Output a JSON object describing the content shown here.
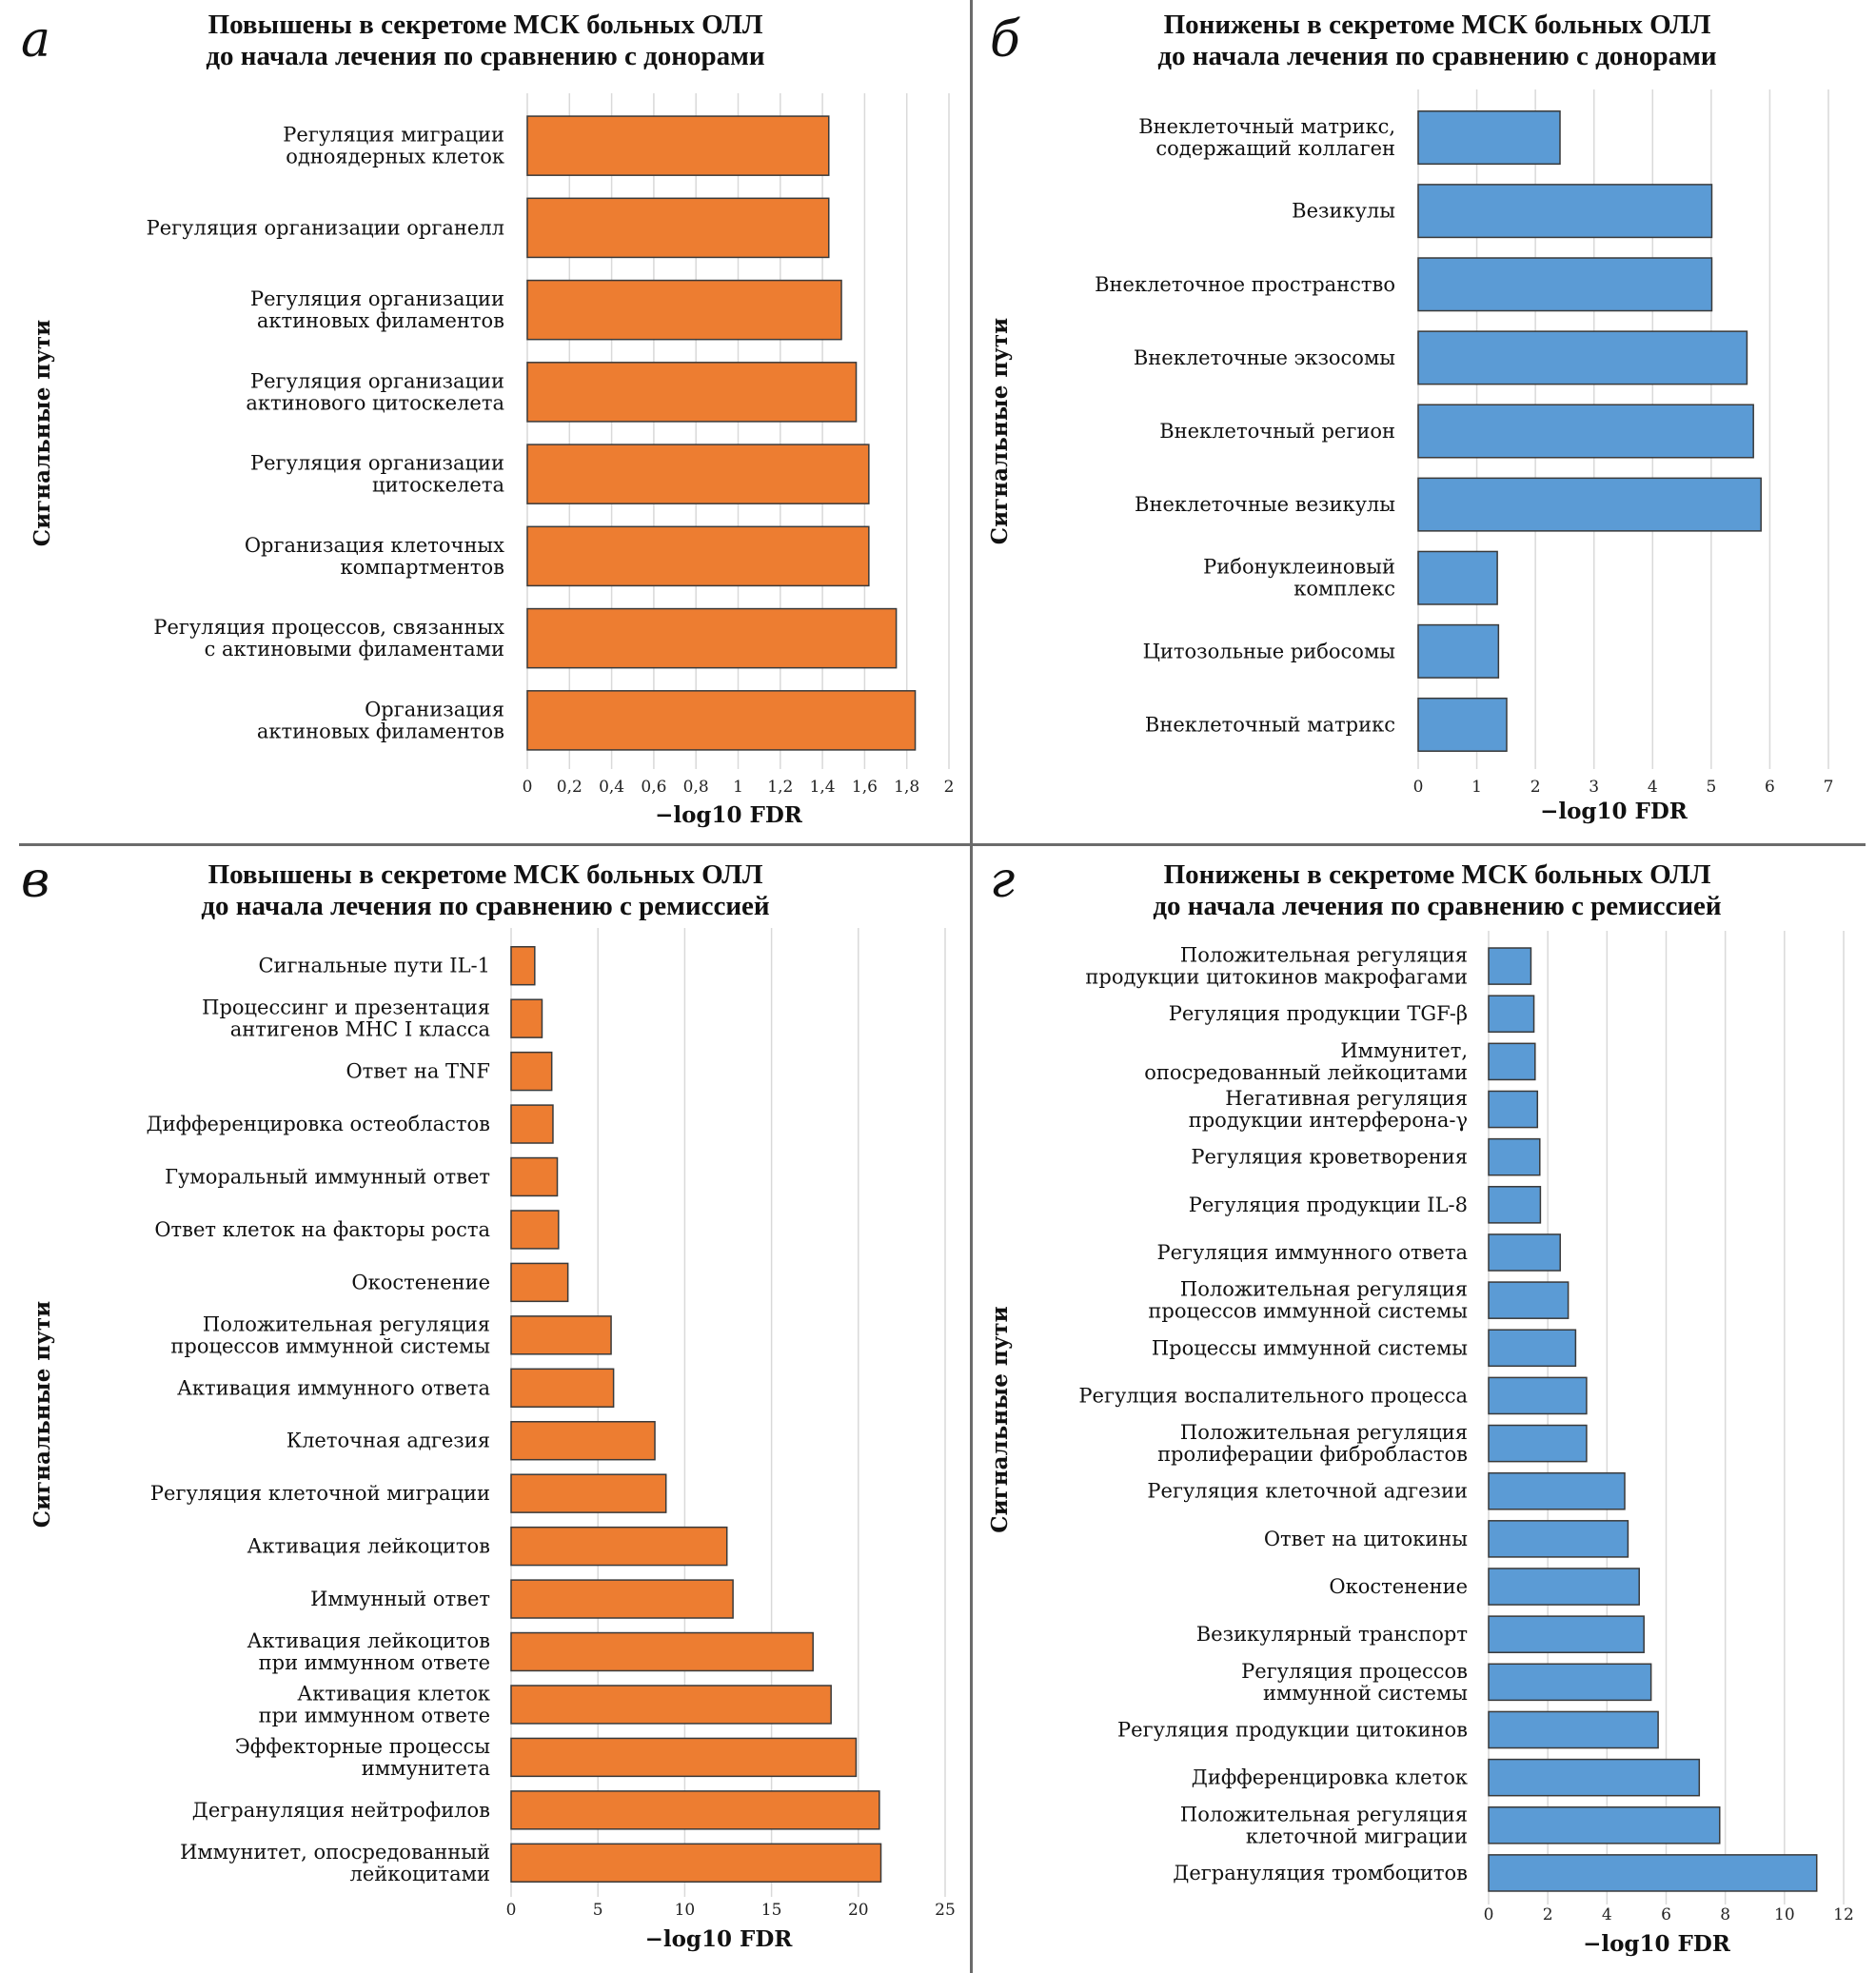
{
  "chart_data": [
    {
      "type": "bar",
      "orientation": "horizontal",
      "panel": "а",
      "title": [
        "Повышены в секретоме МСК больных ОЛЛ",
        "до начала лечения по сравнению с донорами"
      ],
      "xlabel": "−log10 FDR",
      "ylabel": "Сигнальные пути",
      "xlim": [
        0,
        2
      ],
      "xticks": [
        0,
        0.2,
        0.4,
        0.6,
        0.8,
        1,
        1.2,
        1.4,
        1.6,
        1.8,
        2
      ],
      "xtick_labels": [
        "0",
        "0,2",
        "0,4",
        "0,6",
        "0,8",
        "1",
        "1,2",
        "1,4",
        "1,6",
        "1,8",
        "2"
      ],
      "grid": true,
      "color": "#ED7D31",
      "categories": [
        [
          "Регуляция миграции",
          "одноядерных клеток"
        ],
        [
          "Регуляция организации органелл"
        ],
        [
          "Регуляция организации",
          "актиновых филаментов"
        ],
        [
          "Регуляция организации",
          "актинового цитоскелета"
        ],
        [
          "Регуляция организации",
          "цитоскелета"
        ],
        [
          "Организация клеточных",
          "компартментов"
        ],
        [
          "Регуляция процессов, связанных",
          "с актиновыми филаментами"
        ],
        [
          "Организация",
          "актиновых филаментов"
        ]
      ],
      "values": [
        1.43,
        1.43,
        1.49,
        1.56,
        1.62,
        1.62,
        1.75,
        1.84
      ]
    },
    {
      "type": "bar",
      "orientation": "horizontal",
      "panel": "б",
      "title": [
        "Понижены в секретоме МСК больных ОЛЛ",
        "до начала лечения по сравнению с донорами"
      ],
      "xlabel": "−log10 FDR",
      "ylabel": "Сигнальные пути",
      "xlim": [
        0,
        7
      ],
      "xticks": [
        0,
        1,
        2,
        3,
        4,
        5,
        6,
        7
      ],
      "xtick_labels": [
        "0",
        "1",
        "2",
        "3",
        "4",
        "5",
        "6",
        "7"
      ],
      "grid": true,
      "color": "#5B9BD5",
      "categories": [
        [
          "Внеклеточный матрикс,",
          "содержащий коллаген"
        ],
        [
          "Везикулы"
        ],
        [
          "Внеклеточное пространство"
        ],
        [
          "Внеклеточные экзосомы"
        ],
        [
          "Внеклеточный регион"
        ],
        [
          "Внеклеточные везикулы"
        ],
        [
          "Рибонуклеиновый",
          "комплекс"
        ],
        [
          "Цитозольные рибосомы"
        ],
        [
          "Внеклеточный матрикс"
        ]
      ],
      "values": [
        2.42,
        5.01,
        5.01,
        5.61,
        5.72,
        5.85,
        1.35,
        1.37,
        1.51
      ]
    },
    {
      "type": "bar",
      "orientation": "horizontal",
      "panel": "в",
      "title": [
        "Повышены в секретоме МСК больных ОЛЛ",
        "до начала лечения по сравнению с ремиссией"
      ],
      "xlabel": "−log10 FDR",
      "ylabel": "Сигнальные пути",
      "xlim": [
        0,
        25
      ],
      "xticks": [
        0,
        5,
        10,
        15,
        20,
        25
      ],
      "xtick_labels": [
        "0",
        "5",
        "10",
        "15",
        "20",
        "25"
      ],
      "grid": true,
      "color": "#ED7D31",
      "categories": [
        [
          "Сигнальные пути IL-1"
        ],
        [
          "Процессинг и презентация",
          "антигенов MHC I класса"
        ],
        [
          "Ответ на TNF"
        ],
        [
          "Дифференцировка остеобластов"
        ],
        [
          "Гуморальный иммунный ответ"
        ],
        [
          "Ответ клеток на факторы роста"
        ],
        [
          "Окостенение"
        ],
        [
          "Положительная регуляция",
          "процессов иммунной системы"
        ],
        [
          "Активация иммунного ответа"
        ],
        [
          "Клеточная адгезия"
        ],
        [
          "Регуляция клеточной миграции"
        ],
        [
          "Активация лейкоцитов"
        ],
        [
          "Иммунный ответ"
        ],
        [
          "Активация лейкоцитов",
          "при иммунном ответе"
        ],
        [
          "Активация клеток",
          "при иммунном ответе"
        ],
        [
          "Эффекторные процессы",
          "иммунитета"
        ],
        [
          "Дегрануляция нейтрофилов"
        ],
        [
          "Иммунитет, опосредованный",
          "лейкоцитами"
        ]
      ],
      "values": [
        1.36,
        1.78,
        2.34,
        2.41,
        2.66,
        2.73,
        3.27,
        5.76,
        5.9,
        8.28,
        8.92,
        12.43,
        12.78,
        17.39,
        18.43,
        19.87,
        21.21,
        21.3
      ]
    },
    {
      "type": "bar",
      "orientation": "horizontal",
      "panel": "г",
      "title": [
        "Понижены в секретоме МСК больных ОЛЛ",
        "до начала лечения по сравнению с ремиссией"
      ],
      "xlabel": "−log10 FDR",
      "ylabel": "Сигнальные пути",
      "xlim": [
        0,
        12
      ],
      "xticks": [
        0,
        2,
        4,
        6,
        8,
        10,
        12
      ],
      "xtick_labels": [
        "0",
        "2",
        "4",
        "6",
        "8",
        "10",
        "12"
      ],
      "grid": true,
      "color": "#5B9BD5",
      "categories": [
        [
          "Положительная регуляция",
          "продукции цитокинов макрофагами"
        ],
        [
          "Регуляция продукции TGF-β"
        ],
        [
          "Иммунитет,",
          "опосредованный лейкоцитами"
        ],
        [
          "Негативная регуляция",
          "продукции интерферона-γ"
        ],
        [
          "Регуляция кроветворения"
        ],
        [
          "Регуляция продукции IL-8"
        ],
        [
          "Регуляция иммунного ответа"
        ],
        [
          "Положительная регуляция",
          "процессов иммунной системы"
        ],
        [
          "Процессы иммунной системы"
        ],
        [
          "Регулция воспалительного процесса"
        ],
        [
          "Положительная регуляция",
          "пролиферации фибробластов"
        ],
        [
          "Регуляция клеточной адгезии"
        ],
        [
          "Ответ на цитокины"
        ],
        [
          "Окостенение"
        ],
        [
          "Везикулярный транспорт"
        ],
        [
          "Регуляция процессов",
          "иммунной системы"
        ],
        [
          "Регуляция продукции цитокинов"
        ],
        [
          "Дифференцировка клеток"
        ],
        [
          "Положительная регуляция",
          "клеточной миграции"
        ],
        [
          "Дегрануляция тромбоцитов"
        ]
      ],
      "values": [
        1.43,
        1.53,
        1.57,
        1.65,
        1.73,
        1.75,
        2.42,
        2.69,
        2.94,
        3.31,
        3.31,
        4.6,
        4.71,
        5.09,
        5.25,
        5.49,
        5.73,
        7.12,
        7.81,
        11.09
      ]
    }
  ]
}
